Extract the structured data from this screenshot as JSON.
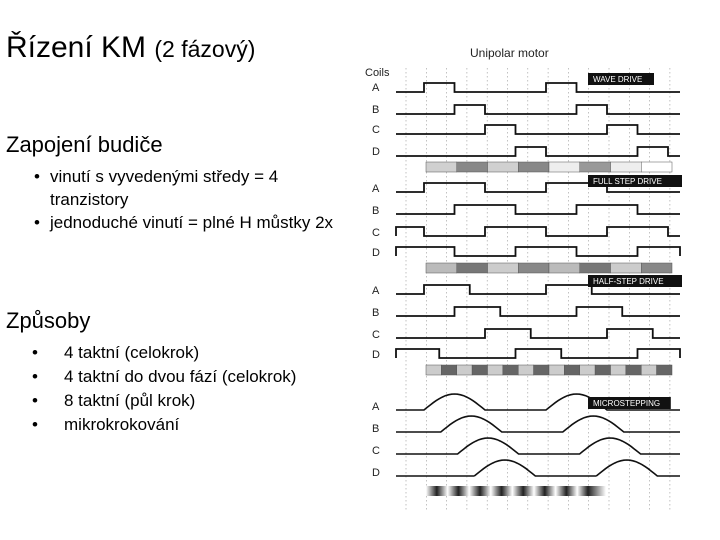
{
  "slide": {
    "title_main": "Řízení KM",
    "title_sub": "(2 fázový)",
    "section1_heading": "Zapojení budiče",
    "section1_items": [
      "vinutí s vyvedenými středy = 4 tranzistory",
      "jednoduché vinutí = plné H můstky 2x"
    ],
    "section2_heading": "Způsoby",
    "section2_items": [
      "4 taktní (celokrok)",
      "4 taktní do dvou fází (celokrok)",
      "8 taktní (půl krok)",
      "mikrokrokování"
    ]
  },
  "diagram": {
    "title": "Unipolar motor",
    "coils_label": "Coils",
    "coil_letters": [
      "A",
      "B",
      "C",
      "D"
    ],
    "modes": [
      "WAVE DRIVE",
      "FULL STEP DRIVE",
      "HALF-STEP DRIVE",
      "MICROSTEPPING"
    ]
  }
}
